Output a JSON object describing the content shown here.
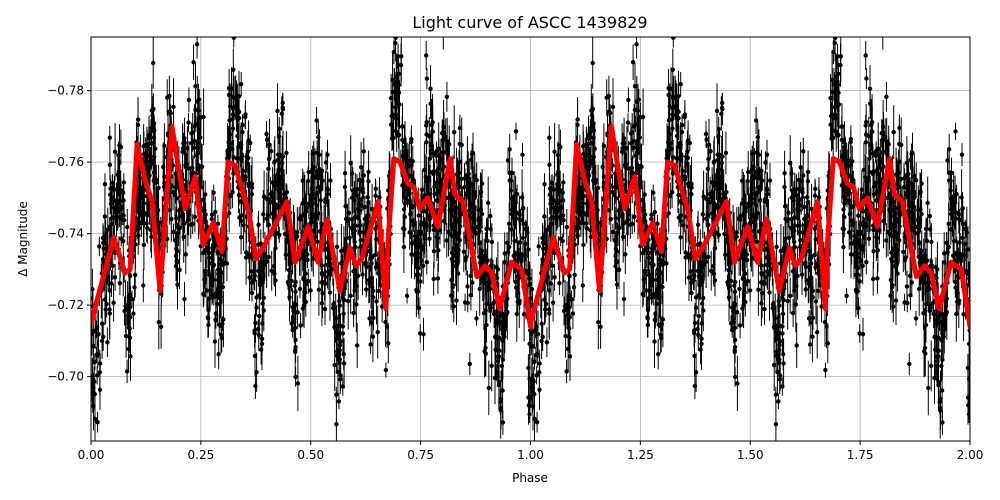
{
  "chart_data": {
    "type": "scatter",
    "title": "Light curve of ASCC 1439829",
    "xlabel": "Phase",
    "ylabel": "Δ Magnitude",
    "xlim": [
      0.0,
      2.0
    ],
    "ylim": [
      -0.682,
      -0.795
    ],
    "y_inverted": true,
    "grid": true,
    "x_ticks": [
      "0.00",
      "0.25",
      "0.50",
      "0.75",
      "1.00",
      "1.25",
      "1.50",
      "1.75",
      "2.00"
    ],
    "x_tick_values": [
      0.0,
      0.25,
      0.5,
      0.75,
      1.0,
      1.25,
      1.5,
      1.75,
      2.0
    ],
    "y_ticks": [
      "−0.78",
      "−0.76",
      "−0.74",
      "−0.72",
      "−0.70"
    ],
    "y_tick_values": [
      -0.78,
      -0.76,
      -0.74,
      -0.72,
      -0.7
    ],
    "series": [
      {
        "name": "observations",
        "style": "black points with vertical error bars",
        "color": "#000000",
        "description": "Dense phase-folded photometry, repeated over two cycles, scattered roughly ±0.02 mag around the model"
      },
      {
        "name": "model",
        "style": "thick red line",
        "color": "#ff0000",
        "phase_period": 1.0,
        "x": [
          0.0,
          0.052,
          0.077,
          0.089,
          0.105,
          0.123,
          0.139,
          0.157,
          0.184,
          0.214,
          0.237,
          0.255,
          0.278,
          0.298,
          0.312,
          0.328,
          0.359,
          0.375,
          0.396,
          0.446,
          0.464,
          0.494,
          0.517,
          0.537,
          0.566,
          0.589,
          0.603,
          0.616,
          0.653,
          0.671,
          0.676,
          0.689,
          0.703,
          0.721,
          0.735,
          0.748,
          0.766,
          0.789,
          0.817,
          0.828,
          0.846,
          0.878,
          0.896,
          0.912,
          0.93,
          0.957,
          0.98,
          1.0
        ],
        "y": [
          -0.715,
          -0.739,
          -0.729,
          -0.73,
          -0.765,
          -0.755,
          -0.749,
          -0.724,
          -0.77,
          -0.747,
          -0.756,
          -0.737,
          -0.743,
          -0.735,
          -0.76,
          -0.759,
          -0.746,
          -0.733,
          -0.737,
          -0.749,
          -0.732,
          -0.742,
          -0.732,
          -0.744,
          -0.724,
          -0.736,
          -0.731,
          -0.733,
          -0.749,
          -0.719,
          -0.738,
          -0.761,
          -0.76,
          -0.754,
          -0.753,
          -0.747,
          -0.75,
          -0.742,
          -0.761,
          -0.751,
          -0.749,
          -0.728,
          -0.731,
          -0.729,
          -0.719,
          -0.732,
          -0.73,
          -0.714
        ]
      }
    ]
  },
  "colors": {
    "background": "#ffffff",
    "axes": "#000000",
    "grid": "#b0b0b0",
    "points": "#000000",
    "model": "#ff0000"
  }
}
